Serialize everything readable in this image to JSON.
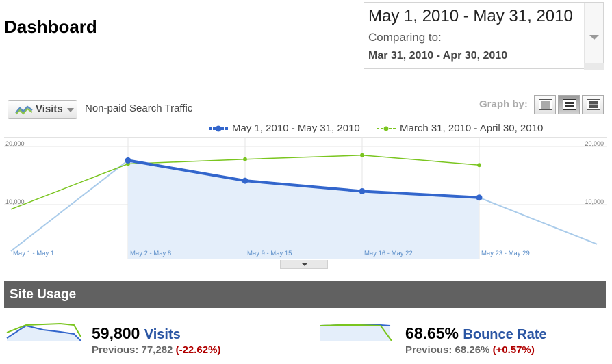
{
  "header": {
    "title": "Dashboard"
  },
  "date_range": {
    "current": "May 1, 2010 - May 31, 2010",
    "comparing_label": "Comparing to:",
    "previous": "Mar 31, 2010 - Apr 30, 2010"
  },
  "toolbar": {
    "metric": "Visits",
    "segment": "Non-paid Search Traffic",
    "graph_by_label": "Graph by:",
    "graph_by_options": [
      "day",
      "week",
      "month"
    ],
    "graph_by_selected": "week"
  },
  "legend": [
    {
      "label": "May 1, 2010 - May 31, 2010",
      "color": "#3366cc"
    },
    {
      "label": "March 31, 2010 - April 30, 2010",
      "color": "#7ac51f"
    }
  ],
  "chart_data": {
    "type": "line",
    "categories": [
      "May 1 - May 1",
      "May 2 - May 8",
      "May 9 - May 15",
      "May 16 - May 22",
      "May 23 - May 29"
    ],
    "y_tick_labels": [
      "20,000",
      "10,000"
    ],
    "ylim": [
      0,
      20000
    ],
    "grid": true,
    "series": [
      {
        "name": "May 1, 2010 - May 31, 2010",
        "color": "#3366cc",
        "values": [
          2000,
          17600,
          14100,
          12300,
          11200
        ],
        "trailing_value": 3200
      },
      {
        "name": "March 31, 2010 - April 30, 2010",
        "color": "#7ac51f",
        "values": [
          9200,
          17000,
          17800,
          18500,
          16800
        ]
      }
    ]
  },
  "site_usage": {
    "title": "Site Usage",
    "metrics": [
      {
        "value": "59,800",
        "name": "Visits",
        "previous_label": "Previous: 77,282",
        "change": "(-22.62%)"
      },
      {
        "value": "68.65%",
        "name": "Bounce Rate",
        "previous_label": "Previous: 68.26%",
        "change": "(+0.57%)"
      }
    ]
  },
  "colors": {
    "current": "#3366cc",
    "previous": "#7ac51f",
    "area_fill": "#e4eefa",
    "header_bar": "#616161",
    "negative": "#b00000",
    "metric_link": "#2a55a3"
  }
}
